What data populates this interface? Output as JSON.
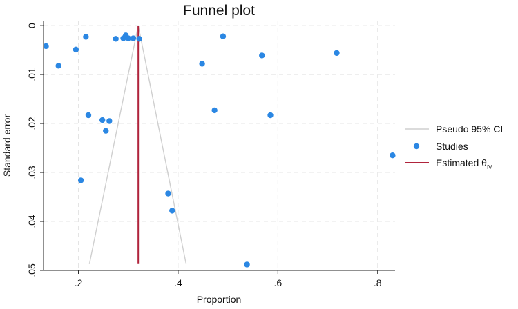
{
  "chart_data": {
    "type": "scatter",
    "title": "Funnel plot",
    "xlabel": "Proportion",
    "ylabel": "Standard error",
    "xlim": [
      0.13,
      0.835
    ],
    "ylim": [
      0.05,
      -0.001
    ],
    "y_reversed": true,
    "grid": true,
    "legend_position": "right",
    "x_ticks": [
      {
        "value": 0.2,
        "label": ".2"
      },
      {
        "value": 0.4,
        "label": ".4"
      },
      {
        "value": 0.6,
        "label": ".6"
      },
      {
        "value": 0.8,
        "label": ".8"
      }
    ],
    "y_ticks": [
      {
        "value": 0,
        "label": "0"
      },
      {
        "value": 0.01,
        "label": ".01"
      },
      {
        "value": 0.02,
        "label": ".02"
      },
      {
        "value": 0.03,
        "label": ".03"
      },
      {
        "value": 0.04,
        "label": ".04"
      },
      {
        "value": 0.05,
        "label": ".05"
      }
    ],
    "estimate": 0.32,
    "series": [
      {
        "name": "Pseudo 95% CI",
        "kind": "ci-lines",
        "color": "#cfcfcf",
        "left": [
          [
            0.32,
            0.0
          ],
          [
            0.222,
            0.0487
          ]
        ],
        "right": [
          [
            0.32,
            0.0
          ],
          [
            0.416,
            0.0487
          ]
        ]
      },
      {
        "name": "Studies",
        "kind": "points",
        "color": "#2b87e3",
        "points": [
          [
            0.135,
            0.0042
          ],
          [
            0.16,
            0.0082
          ],
          [
            0.195,
            0.0049
          ],
          [
            0.215,
            0.0023
          ],
          [
            0.22,
            0.0183
          ],
          [
            0.248,
            0.0193
          ],
          [
            0.255,
            0.0215
          ],
          [
            0.262,
            0.0195
          ],
          [
            0.205,
            0.0316
          ],
          [
            0.275,
            0.0027
          ],
          [
            0.29,
            0.0026
          ],
          [
            0.295,
            0.002
          ],
          [
            0.3,
            0.0026
          ],
          [
            0.31,
            0.0026
          ],
          [
            0.322,
            0.0027
          ],
          [
            0.38,
            0.0343
          ],
          [
            0.388,
            0.0378
          ],
          [
            0.448,
            0.0078
          ],
          [
            0.473,
            0.0173
          ],
          [
            0.49,
            0.0022
          ],
          [
            0.538,
            0.0488
          ],
          [
            0.568,
            0.0061
          ],
          [
            0.585,
            0.0183
          ],
          [
            0.718,
            0.0056
          ],
          [
            0.83,
            0.0265
          ]
        ]
      },
      {
        "name": "Estimated θ",
        "name_subscript": "IV",
        "kind": "estimate-line",
        "color": "#b0243c"
      }
    ]
  }
}
